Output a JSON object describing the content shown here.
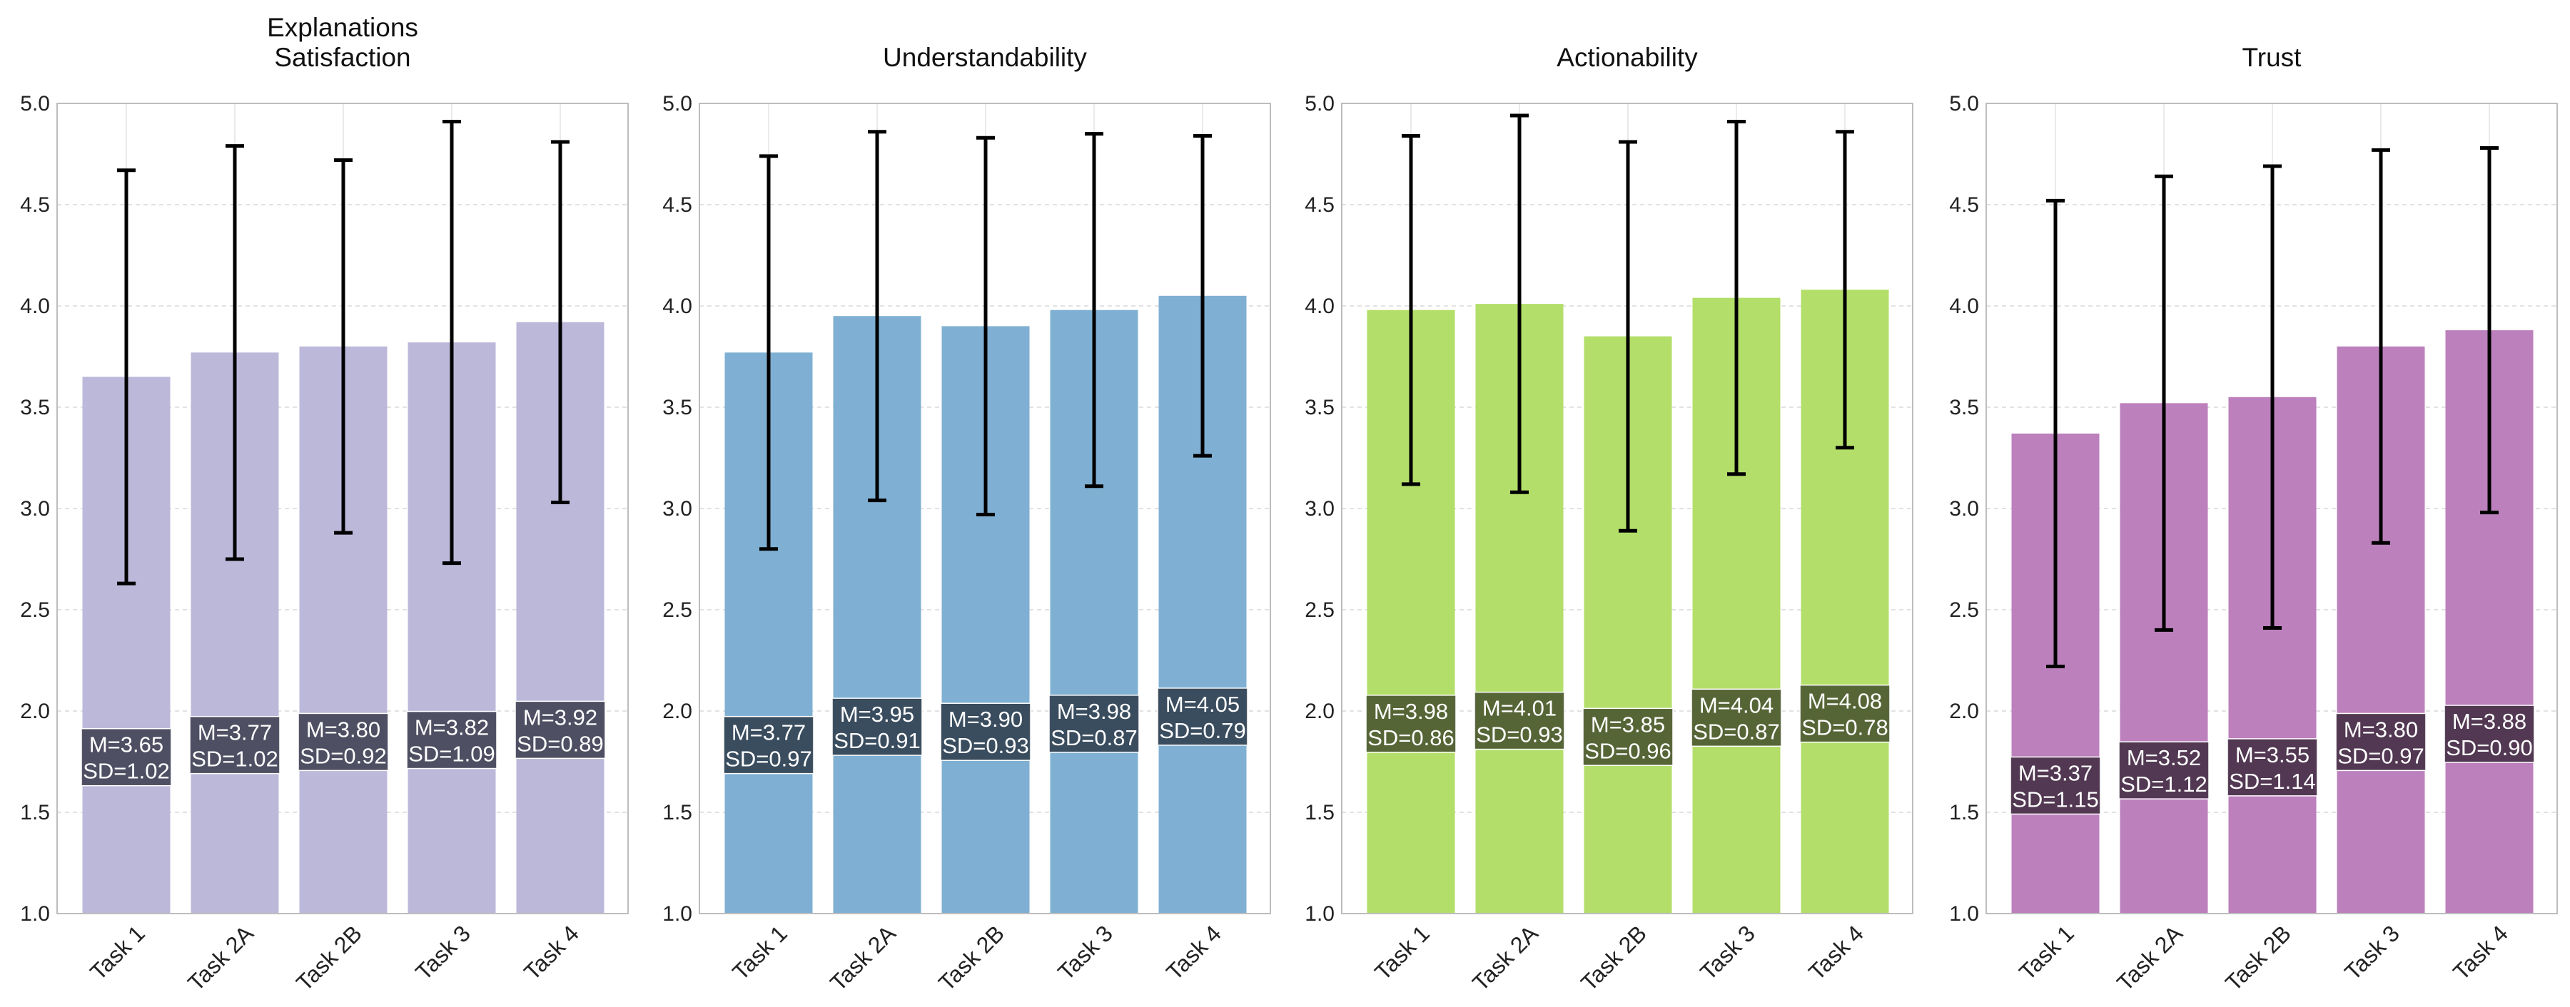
{
  "chart_data": [
    {
      "type": "bar",
      "title": "Explanations\nSatisfaction",
      "categories": [
        "Task 1",
        "Task 2A",
        "Task 2B",
        "Task 3",
        "Task 4"
      ],
      "values": [
        3.65,
        3.77,
        3.8,
        3.82,
        3.92
      ],
      "sd": [
        1.02,
        1.02,
        0.92,
        1.09,
        0.89
      ],
      "bar_color": "#bcb8da",
      "label_bg": "#3c3c4e",
      "mean_labels": [
        "M=3.65",
        "M=3.77",
        "M=3.80",
        "M=3.82",
        "M=3.92"
      ],
      "sd_labels": [
        "SD=1.02",
        "SD=1.02",
        "SD=0.92",
        "SD=1.09",
        "SD=0.89"
      ],
      "ylim": [
        1.0,
        5.0
      ],
      "yticks": [
        "1.0",
        "1.5",
        "2.0",
        "2.5",
        "3.0",
        "3.5",
        "4.0",
        "4.5",
        "5.0"
      ],
      "grid": true
    },
    {
      "type": "bar",
      "title": "Understandability",
      "categories": [
        "Task 1",
        "Task 2A",
        "Task 2B",
        "Task 3",
        "Task 4"
      ],
      "values": [
        3.77,
        3.95,
        3.9,
        3.98,
        4.05
      ],
      "sd": [
        0.97,
        0.91,
        0.93,
        0.87,
        0.79
      ],
      "bar_color": "#7fb0d3",
      "label_bg": "#2e3c4a",
      "mean_labels": [
        "M=3.77",
        "M=3.95",
        "M=3.90",
        "M=3.98",
        "M=4.05"
      ],
      "sd_labels": [
        "SD=0.97",
        "SD=0.91",
        "SD=0.93",
        "SD=0.87",
        "SD=0.79"
      ],
      "ylim": [
        1.0,
        5.0
      ],
      "yticks": [
        "1.0",
        "1.5",
        "2.0",
        "2.5",
        "3.0",
        "3.5",
        "4.0",
        "4.5",
        "5.0"
      ],
      "grid": true
    },
    {
      "type": "bar",
      "title": "Actionability",
      "categories": [
        "Task 1",
        "Task 2A",
        "Task 2B",
        "Task 3",
        "Task 4"
      ],
      "values": [
        3.98,
        4.01,
        3.85,
        4.04,
        4.08
      ],
      "sd": [
        0.86,
        0.93,
        0.96,
        0.87,
        0.78
      ],
      "bar_color": "#b3de69",
      "label_bg": "#45502e",
      "mean_labels": [
        "M=3.98",
        "M=4.01",
        "M=3.85",
        "M=4.04",
        "M=4.08"
      ],
      "sd_labels": [
        "SD=0.86",
        "SD=0.93",
        "SD=0.96",
        "SD=0.87",
        "SD=0.78"
      ],
      "ylim": [
        1.0,
        5.0
      ],
      "yticks": [
        "1.0",
        "1.5",
        "2.0",
        "2.5",
        "3.0",
        "3.5",
        "4.0",
        "4.5",
        "5.0"
      ],
      "grid": true
    },
    {
      "type": "bar",
      "title": "Trust",
      "categories": [
        "Task 1",
        "Task 2A",
        "Task 2B",
        "Task 3",
        "Task 4"
      ],
      "values": [
        3.37,
        3.52,
        3.55,
        3.8,
        3.88
      ],
      "sd": [
        1.15,
        1.12,
        1.14,
        0.97,
        0.9
      ],
      "bar_color": "#bc80bd",
      "label_bg": "#3f2c40",
      "mean_labels": [
        "M=3.37",
        "M=3.52",
        "M=3.55",
        "M=3.80",
        "M=3.88"
      ],
      "sd_labels": [
        "SD=1.15",
        "SD=1.12",
        "SD=1.14",
        "SD=0.97",
        "SD=0.90"
      ],
      "ylim": [
        1.0,
        5.0
      ],
      "yticks": [
        "1.0",
        "1.5",
        "2.0",
        "2.5",
        "3.0",
        "3.5",
        "4.0",
        "4.5",
        "5.0"
      ],
      "grid": true
    }
  ]
}
